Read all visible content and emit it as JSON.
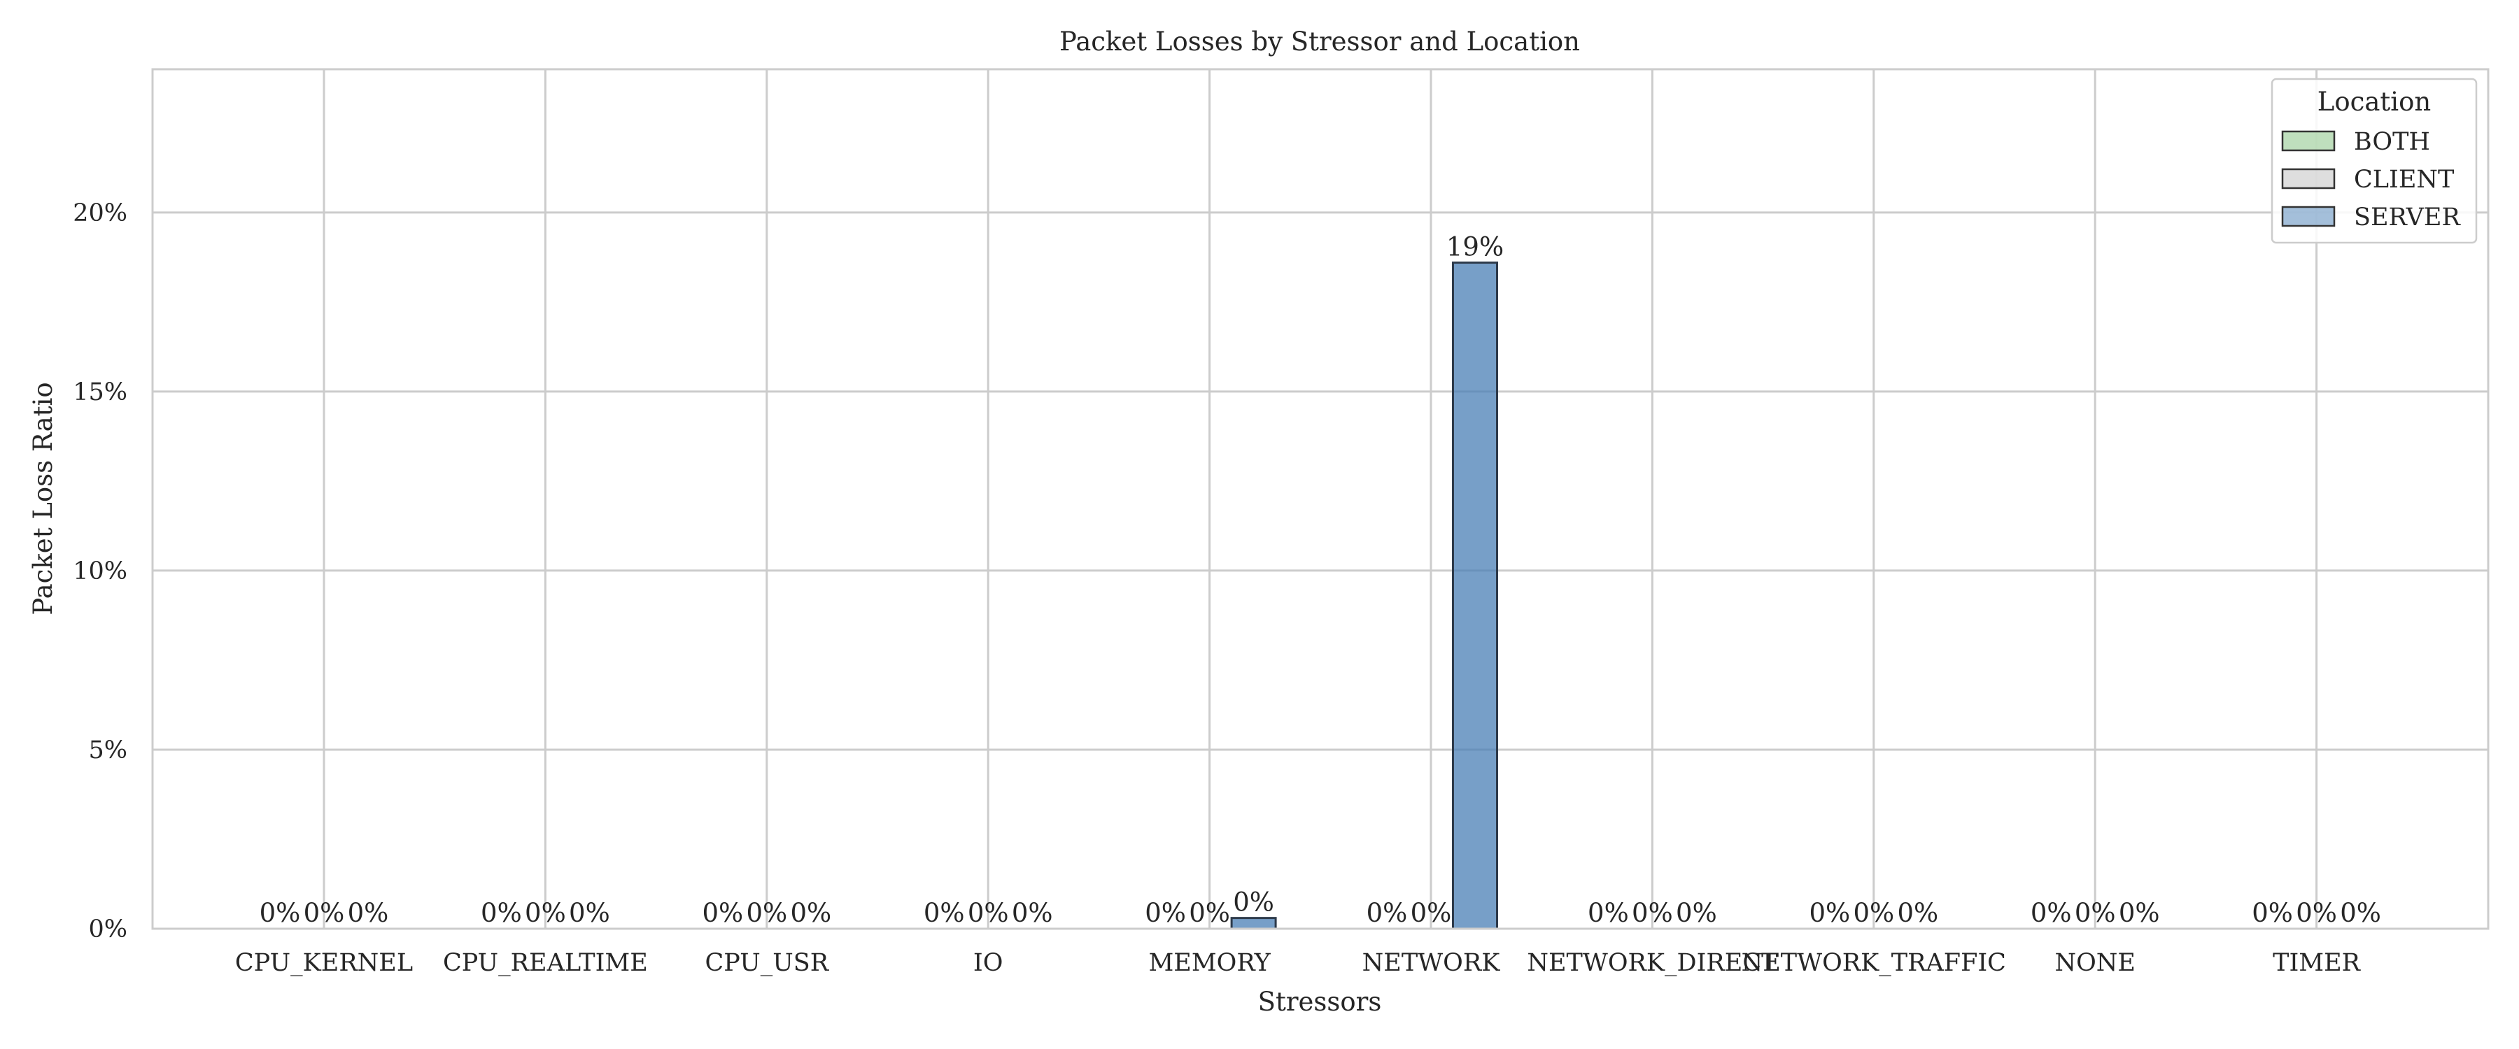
{
  "chart_data": {
    "type": "bar",
    "title": "Packet Losses by Stressor and Location",
    "xlabel": "Stressors",
    "ylabel": "Packet Loss Ratio",
    "ylim": [
      0,
      24
    ],
    "y_unit": "%",
    "yticks": [
      "0%",
      "5%",
      "10%",
      "15%",
      "20%"
    ],
    "grid": true,
    "categories": [
      "CPU_KERNEL",
      "CPU_REALTIME",
      "CPU_USR",
      "IO",
      "MEMORY",
      "NETWORK",
      "NETWORK_DIRECT",
      "NETWORK_TRAFFIC",
      "NONE",
      "TIMER"
    ],
    "legend": {
      "title": "Location",
      "placement": "top-right"
    },
    "series": [
      {
        "name": "BOTH",
        "color": "#7fbf7b",
        "values": [
          0,
          0,
          0,
          0,
          0,
          0,
          0,
          0,
          0,
          0
        ],
        "labels": [
          "0%",
          "0%",
          "0%",
          "0%",
          "0%",
          "0%",
          "0%",
          "0%",
          "0%",
          "0%"
        ]
      },
      {
        "name": "CLIENT",
        "color": "#bdbdbd",
        "values": [
          0,
          0,
          0,
          0,
          0,
          0,
          0,
          0,
          0,
          0
        ],
        "labels": [
          "0%",
          "0%",
          "0%",
          "0%",
          "0%",
          "0%",
          "0%",
          "0%",
          "0%",
          "0%"
        ]
      },
      {
        "name": "SERVER",
        "color": "#4a7fb5",
        "values": [
          0,
          0,
          0,
          0,
          0.3,
          18.6,
          0,
          0,
          0,
          0
        ],
        "labels": [
          "0%",
          "0%",
          "0%",
          "0%",
          "0%",
          "19%",
          "0%",
          "0%",
          "0%",
          "0%"
        ]
      }
    ]
  }
}
